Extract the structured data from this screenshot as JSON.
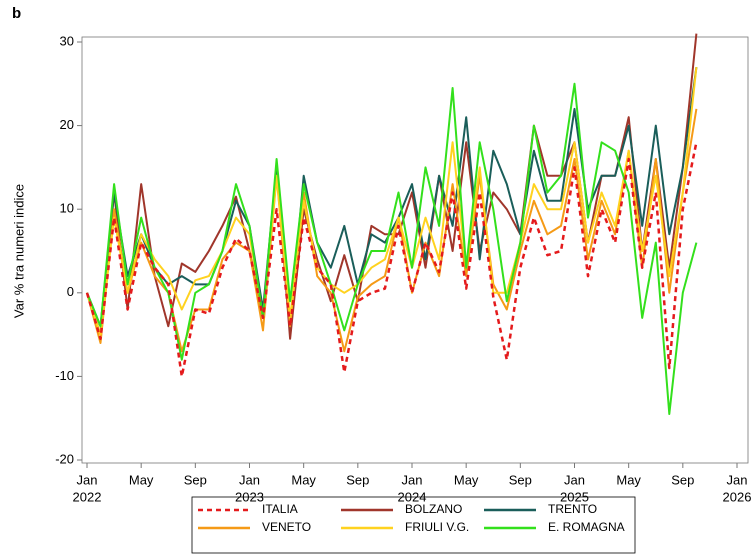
{
  "chart_data": {
    "type": "line",
    "panel_label": "b",
    "ylabel": "Var % tra numeri indice",
    "x": [
      "2022-01",
      "2022-02",
      "2022-03",
      "2022-04",
      "2022-05",
      "2022-06",
      "2022-07",
      "2022-08",
      "2022-09",
      "2022-10",
      "2022-11",
      "2022-12",
      "2023-01",
      "2023-02",
      "2023-03",
      "2023-04",
      "2023-05",
      "2023-06",
      "2023-07",
      "2023-08",
      "2023-09",
      "2023-10",
      "2023-11",
      "2023-12",
      "2024-01",
      "2024-02",
      "2024-03",
      "2024-04",
      "2024-05",
      "2024-06",
      "2024-07",
      "2024-08",
      "2024-09",
      "2024-10",
      "2024-11",
      "2024-12",
      "2025-01",
      "2025-02",
      "2025-03",
      "2025-04",
      "2025-05",
      "2025-06",
      "2025-07",
      "2025-08",
      "2025-09",
      "2025-10"
    ],
    "series": [
      {
        "name": "ITALIA",
        "color": "#e41a1c",
        "style": "dashed",
        "values": [
          0,
          -5.5,
          9,
          -2,
          6,
          3,
          1,
          -10,
          -2,
          -2.5,
          3,
          6.5,
          5,
          -3,
          10,
          -4,
          9,
          3,
          1,
          -9.5,
          -1,
          0,
          0.5,
          8,
          0,
          6,
          2.5,
          12,
          0.5,
          12,
          -0.5,
          -8,
          3,
          9,
          4.5,
          5,
          15,
          2,
          10,
          6,
          16,
          3,
          12,
          -9,
          10,
          18
        ]
      },
      {
        "name": "BOLZANO",
        "color": "#a0362b",
        "style": "solid",
        "values": [
          0,
          -5,
          12,
          -2,
          13,
          2,
          -4,
          3.5,
          2.5,
          5,
          8,
          11.5,
          5,
          -3,
          15,
          -5.5,
          10,
          4,
          -1,
          4.5,
          -1,
          8,
          7,
          7,
          12,
          3,
          14,
          5,
          18,
          5,
          12,
          10,
          7,
          20,
          14,
          14,
          18,
          6,
          14,
          14,
          21,
          5,
          16,
          3,
          15,
          31
        ]
      },
      {
        "name": "TRENTO",
        "color": "#1a5e5a",
        "style": "solid",
        "values": [
          0,
          -4,
          12,
          2,
          7,
          3,
          1,
          2,
          1,
          1,
          5,
          11,
          8,
          -2,
          15,
          -4,
          14,
          6,
          3,
          8,
          1,
          7,
          6,
          9,
          13,
          4,
          14,
          8,
          21,
          4,
          17,
          13,
          7,
          17,
          11,
          11,
          22,
          10,
          14,
          14,
          20,
          8,
          20,
          7,
          15,
          27
        ]
      },
      {
        "name": "VENETO",
        "color": "#f59a16",
        "style": "solid",
        "values": [
          0,
          -6,
          10,
          0,
          6,
          2,
          0,
          -7,
          -2,
          -2,
          4,
          6,
          5,
          -4.5,
          14,
          -4,
          12,
          2,
          0,
          -7,
          -0.5,
          1,
          2,
          9,
          0,
          6,
          2,
          13,
          2,
          14,
          1,
          -2,
          5,
          11,
          7,
          8,
          16,
          4,
          11,
          7,
          17,
          3,
          16,
          0,
          12,
          22
        ]
      },
      {
        "name": "FRIULI V.G.",
        "color": "#ffd21f",
        "style": "solid",
        "values": [
          0,
          -5,
          9,
          0,
          7,
          4,
          2,
          -2,
          1.5,
          2,
          5,
          9,
          7,
          -3,
          14,
          -3,
          11,
          3,
          1,
          0,
          1,
          3,
          4,
          9,
          3,
          9,
          4,
          18,
          3,
          15,
          0,
          0,
          6,
          13,
          10,
          10,
          18,
          6,
          12,
          8,
          17,
          5,
          14,
          2,
          12,
          27
        ]
      },
      {
        "name": "E. ROMAGNA",
        "color": "#33e01c",
        "style": "solid",
        "values": [
          0,
          -4,
          13,
          1,
          9,
          3,
          0,
          -8,
          0,
          1,
          5,
          13,
          8,
          -3,
          16,
          -1,
          13,
          6,
          1,
          -4.5,
          1,
          5,
          5,
          12,
          3,
          15,
          8,
          24.5,
          3,
          18,
          10,
          -1,
          6,
          20,
          12,
          14,
          25,
          9,
          18,
          17,
          12,
          -3,
          6,
          -14.5,
          0,
          6
        ]
      }
    ],
    "xlim": [
      "2022-01",
      "2026-01"
    ],
    "xticks": [
      {
        "value": "2022-01",
        "label": [
          "Jan",
          "2022"
        ]
      },
      {
        "value": "2022-05",
        "label": "May"
      },
      {
        "value": "2022-09",
        "label": "Sep"
      },
      {
        "value": "2023-01",
        "label": [
          "Jan",
          "2023"
        ]
      },
      {
        "value": "2023-05",
        "label": "May"
      },
      {
        "value": "2023-09",
        "label": "Sep"
      },
      {
        "value": "2024-01",
        "label": [
          "Jan",
          "2024"
        ]
      },
      {
        "value": "2024-05",
        "label": "May"
      },
      {
        "value": "2024-09",
        "label": "Sep"
      },
      {
        "value": "2025-01",
        "label": [
          "Jan",
          "2025"
        ]
      },
      {
        "value": "2025-05",
        "label": "May"
      },
      {
        "value": "2025-09",
        "label": "Sep"
      },
      {
        "value": "2026-01",
        "label": [
          "Jan",
          "2026"
        ]
      }
    ],
    "ylim": [
      -20,
      30
    ],
    "yticks": [
      -20,
      -10,
      0,
      10,
      20,
      30
    ],
    "grid": false
  }
}
